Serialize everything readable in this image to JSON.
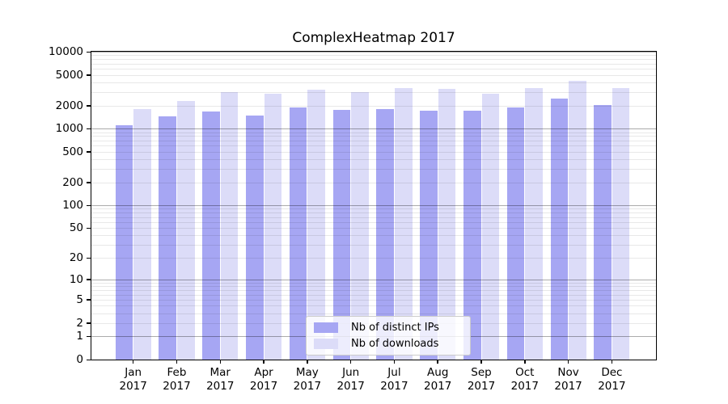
{
  "chart_data": {
    "type": "bar",
    "title": "ComplexHeatmap 2017",
    "categories": [
      "Jan 2017",
      "Feb 2017",
      "Mar 2017",
      "Apr 2017",
      "May 2017",
      "Jun 2017",
      "Jul 2017",
      "Aug 2017",
      "Sep 2017",
      "Oct 2017",
      "Nov 2017",
      "Dec 2017"
    ],
    "series": [
      {
        "name": "Nb of distinct IPs",
        "color": "#a6a6f3",
        "values": [
          1120,
          1430,
          1670,
          1480,
          1870,
          1770,
          1800,
          1700,
          1720,
          1870,
          2480,
          2010
        ]
      },
      {
        "name": "Nb of downloads",
        "color": "#dcdcf8",
        "values": [
          1800,
          2290,
          2950,
          2820,
          3210,
          2980,
          3360,
          3290,
          2850,
          3330,
          4220,
          3330
        ]
      }
    ],
    "xlabel": "",
    "ylabel": "",
    "yscale": "log1p",
    "ylim": [
      0,
      10000
    ],
    "yticks": [
      0,
      1,
      2,
      5,
      10,
      20,
      50,
      100,
      200,
      500,
      1000,
      2000,
      5000,
      10000
    ],
    "grid": {
      "shown": true,
      "major_decades": [
        1,
        10,
        100,
        1000,
        10000
      ],
      "minor_multiples": [
        2,
        3,
        4,
        5,
        6,
        7,
        8,
        9
      ]
    },
    "legend": {
      "position": "lower center",
      "entries": [
        "Nb of distinct IPs",
        "Nb of downloads"
      ]
    }
  }
}
